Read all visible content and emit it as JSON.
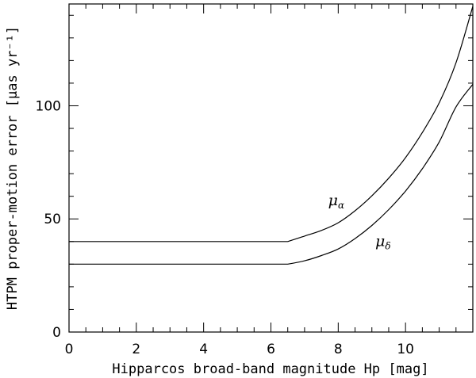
{
  "chart_data": {
    "type": "line",
    "xlabel": "Hipparcos broad-band magnitude Hp [mag]",
    "ylabel": "HTPM proper-motion error [μas yr⁻¹]",
    "xlim": [
      0,
      12
    ],
    "ylim": [
      0,
      145
    ],
    "x_ticks": [
      0,
      2,
      4,
      6,
      8,
      10
    ],
    "y_ticks": [
      0,
      50,
      100
    ],
    "x_minor_step": 0.5,
    "y_minor_step": 10,
    "series": [
      {
        "name": "μα",
        "points": [
          [
            0,
            40
          ],
          [
            6.5,
            40
          ],
          [
            7,
            42.4
          ],
          [
            7.5,
            44.9
          ],
          [
            8,
            48.3
          ],
          [
            8.5,
            53.6
          ],
          [
            9,
            60.2
          ],
          [
            9.5,
            68
          ],
          [
            10,
            77.1
          ],
          [
            10.5,
            88.2
          ],
          [
            11,
            101.3
          ],
          [
            11.5,
            119
          ],
          [
            12,
            144
          ]
        ]
      },
      {
        "name": "μδ",
        "points": [
          [
            0,
            30
          ],
          [
            6.5,
            30
          ],
          [
            7,
            31.5
          ],
          [
            7.5,
            33.8
          ],
          [
            8,
            36.7
          ],
          [
            8.5,
            41.3
          ],
          [
            9,
            47.1
          ],
          [
            9.5,
            54.1
          ],
          [
            10,
            62.3
          ],
          [
            10.5,
            72.2
          ],
          [
            11,
            84
          ],
          [
            11.5,
            99.5
          ],
          [
            12,
            109.5
          ]
        ]
      }
    ],
    "annotations": [
      {
        "series": 0,
        "symbol": "μ",
        "subscript": "α",
        "x": 7.7,
        "y": 56
      },
      {
        "series": 1,
        "symbol": "μ",
        "subscript": "δ",
        "x": 9.1,
        "y": 38
      }
    ],
    "grid": false,
    "legend": "none"
  }
}
